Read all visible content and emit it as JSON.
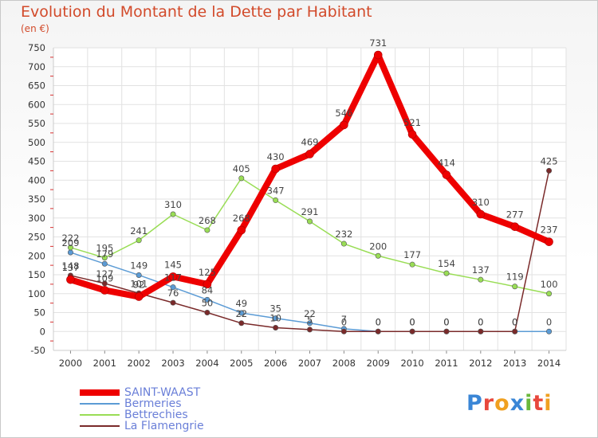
{
  "title": "Evolution du Montant de la Dette par Habitant",
  "subtitle": "(en €)",
  "logo": {
    "text": "Proxiti",
    "letter_colors": [
      "#3a86d6",
      "#e8483c",
      "#f0a020",
      "#3a86d6",
      "#6ab83c",
      "#e8483c",
      "#f0a020"
    ]
  },
  "chart_data": {
    "type": "line",
    "title": "Evolution du Montant de la Dette par Habitant",
    "ylabel": "(en €)",
    "x": [
      "2000",
      "2001",
      "2002",
      "2003",
      "2004",
      "2005",
      "2006",
      "2007",
      "2008",
      "2009",
      "2010",
      "2011",
      "2012",
      "2013",
      "2014"
    ],
    "ylim": [
      -50,
      750
    ],
    "yticks": [
      -50,
      0,
      50,
      100,
      150,
      200,
      250,
      300,
      350,
      400,
      450,
      500,
      550,
      600,
      650,
      700,
      750
    ],
    "grid": true,
    "legend_position": "bottom-left",
    "series": [
      {
        "name": "SAINT-WAAST",
        "color": "#ee0000",
        "emphasis": true,
        "values": [
          137,
          109,
          92,
          145,
          125,
          268,
          430,
          469,
          546,
          731,
          521,
          414,
          310,
          277,
          237
        ],
        "labels": [
          "137",
          "109",
          "92",
          "145",
          "125",
          "268",
          "430",
          "469",
          "546",
          "731",
          "521",
          "414",
          "310",
          "277",
          "237"
        ]
      },
      {
        "name": "Bermeries",
        "color": "#5b9bd5",
        "values": [
          209,
          179,
          149,
          117,
          84,
          49,
          35,
          22,
          7,
          0,
          0,
          0,
          0,
          0,
          0
        ],
        "labels": [
          "209",
          "179",
          "149",
          "117",
          "84",
          "49",
          "35",
          "22",
          "7",
          "0",
          "0",
          "0",
          "0",
          "0",
          "0"
        ]
      },
      {
        "name": "Bettrechies",
        "color": "#99dd55",
        "values": [
          222,
          195,
          241,
          310,
          268,
          405,
          347,
          291,
          232,
          200,
          177,
          154,
          137,
          119,
          100
        ],
        "labels": [
          "222",
          "195",
          "241",
          "310",
          "268",
          "405",
          "347",
          "291",
          "232",
          "200",
          "177",
          "154",
          "137",
          "119",
          "100"
        ]
      },
      {
        "name": "La Flamengrie",
        "color": "#7a2a2a",
        "values": [
          148,
          127,
          101,
          76,
          50,
          22,
          10,
          5,
          0,
          0,
          0,
          0,
          0,
          0,
          425
        ],
        "labels": [
          "148",
          "127",
          "101",
          "76",
          "50",
          "22",
          "10",
          "5",
          "0",
          "0",
          "0",
          "0",
          "0",
          "0",
          "425"
        ]
      }
    ]
  }
}
